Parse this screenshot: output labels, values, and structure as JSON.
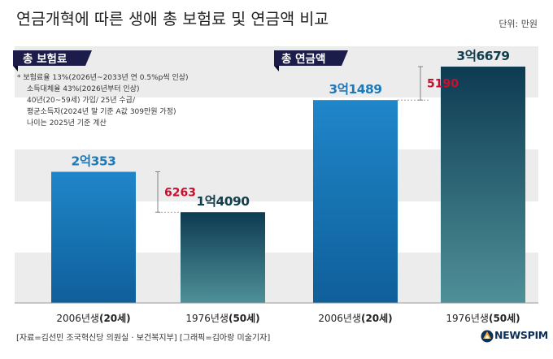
{
  "header": {
    "title": "연금개혁에 따른 생애 총 보험료 및 연금액 비교",
    "unit": "단위: 만원"
  },
  "notes": [
    "* 보험료율 13%(2026년~2033년 연 0.5%p씩 인상)",
    "소득대체율 43%(2026년부터 인상)",
    "40년(20~59세) 가입/ 25년 수급/",
    "평균소득자(2024년 말 기준 A값 309만원 가정)",
    "나이는 2025년 기준 계산"
  ],
  "footer": {
    "source": "[자료=김선민 조국혁신당 의원실 · 보건복지부] [그래픽=김아랑 미술기자]",
    "brand": "NEWSPIM"
  },
  "colors": {
    "bar_light_top": "#1f86c9",
    "bar_light_bottom": "#0f5f9a",
    "bar_dark_top": "#0d3b52",
    "bar_dark_bottom": "#4f9098",
    "value_light": "#1f78b8",
    "value_dark": "#123f4e",
    "diff": "#c8102e",
    "tag_bg": "#1c1c4a",
    "band": "#ececec"
  },
  "chart_data": [
    {
      "type": "bar",
      "title": "총 보험료",
      "categories": [
        "2006년생(20세)",
        "1976년생(50세)"
      ],
      "category_parts": [
        [
          "2006년생",
          "(20세)"
        ],
        [
          "1976년생",
          "(50세)"
        ]
      ],
      "values": [
        20353,
        14090
      ],
      "value_labels": [
        "2억353",
        "1억4090"
      ],
      "difference": 6263,
      "difference_label": "6263"
    },
    {
      "type": "bar",
      "title": "총 연금액",
      "categories": [
        "2006년생(20세)",
        "1976년생(50세)"
      ],
      "category_parts": [
        [
          "2006년생",
          "(20세)"
        ],
        [
          "1976년생",
          "(50세)"
        ]
      ],
      "values": [
        31489,
        36679
      ],
      "value_labels": [
        "3억1489",
        "3억6679"
      ],
      "difference": 5190,
      "difference_label": "5190"
    }
  ]
}
